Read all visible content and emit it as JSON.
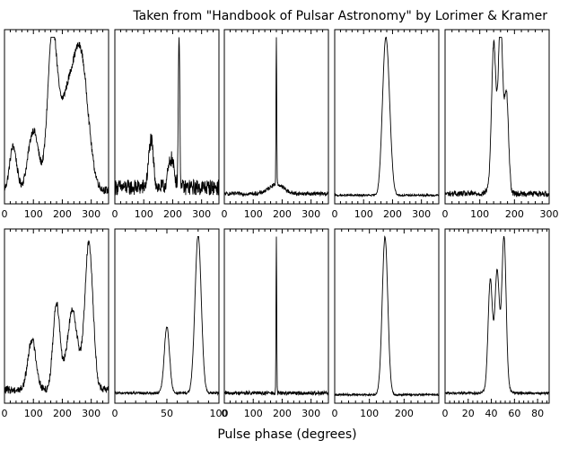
{
  "header": {
    "title": "Taken from \"Handbook of Pulsar Astronomy\" by Lorimer & Kramer"
  },
  "xlabel": "Pulse phase (degrees)",
  "chart_data": [
    {
      "type": "line",
      "xlim": [
        0,
        360
      ],
      "xticks": [
        0,
        100,
        200,
        300
      ],
      "peaks": [
        [
          30,
          0.28,
          12
        ],
        [
          100,
          0.38,
          18
        ],
        [
          165,
          0.92,
          16
        ],
        [
          215,
          0.55,
          28
        ],
        [
          265,
          0.78,
          25
        ]
      ],
      "baseline": 0.05,
      "noise": 0.025
    },
    {
      "type": "line",
      "xlim": [
        0,
        360
      ],
      "xticks": [
        0,
        100,
        200,
        300
      ],
      "peaks": [
        [
          125,
          0.3,
          8
        ],
        [
          195,
          0.18,
          10
        ],
        [
          222,
          1.0,
          2.5
        ]
      ],
      "baseline": 0.07,
      "noise": 0.05
    },
    {
      "type": "line",
      "xlim": [
        0,
        360
      ],
      "xticks": [
        0,
        100,
        200,
        300
      ],
      "peaks": [
        [
          180,
          0.06,
          25
        ],
        [
          180,
          1.0,
          1.2
        ]
      ],
      "baseline": 0.03,
      "noise": 0.012
    },
    {
      "type": "line",
      "xlim": [
        0,
        360
      ],
      "xticks": [
        0,
        100,
        200,
        300
      ],
      "peaks": [
        [
          172,
          0.55,
          10
        ],
        [
          183,
          0.6,
          11
        ]
      ],
      "baseline": 0.02,
      "noise": 0.006
    },
    {
      "type": "line",
      "xlim": [
        0,
        300
      ],
      "xticks": [
        0,
        100,
        200,
        300
      ],
      "peaks": [
        [
          140,
          0.78,
          6
        ],
        [
          160,
          0.95,
          6
        ],
        [
          177,
          0.6,
          6
        ],
        [
          150,
          0.22,
          14
        ]
      ],
      "baseline": 0.03,
      "noise": 0.018
    },
    {
      "type": "line",
      "xlim": [
        0,
        360
      ],
      "xticks": [
        0,
        100,
        200,
        300
      ],
      "peaks": [
        [
          95,
          0.32,
          14
        ],
        [
          180,
          0.55,
          12
        ],
        [
          235,
          0.5,
          18
        ],
        [
          292,
          0.93,
          14
        ]
      ],
      "baseline": 0.05,
      "noise": 0.025
    },
    {
      "type": "line",
      "xlim": [
        0,
        100
      ],
      "xticks": [
        0,
        50,
        100
      ],
      "peaks": [
        [
          50,
          0.42,
          2.5
        ],
        [
          80,
          1.0,
          3
        ]
      ],
      "baseline": 0.03,
      "noise": 0.008
    },
    {
      "type": "line",
      "xlim": [
        0,
        360
      ],
      "xticks": [
        0,
        100,
        200,
        300
      ],
      "peaks": [
        [
          180,
          1.0,
          1.2
        ]
      ],
      "baseline": 0.03,
      "noise": 0.012
    },
    {
      "type": "line",
      "xlim": [
        0,
        300
      ],
      "xticks": [
        0,
        100,
        200
      ],
      "peaks": [
        [
          145,
          1.0,
          8
        ]
      ],
      "baseline": 0.02,
      "noise": 0.006
    },
    {
      "type": "line",
      "xlim": [
        0,
        90
      ],
      "xticks": [
        0,
        20,
        40,
        60,
        80
      ],
      "peaks": [
        [
          39,
          0.62,
          1.8
        ],
        [
          45,
          0.58,
          1.8
        ],
        [
          51,
          0.9,
          1.8
        ],
        [
          45,
          0.2,
          5
        ]
      ],
      "baseline": 0.03,
      "noise": 0.008
    }
  ]
}
